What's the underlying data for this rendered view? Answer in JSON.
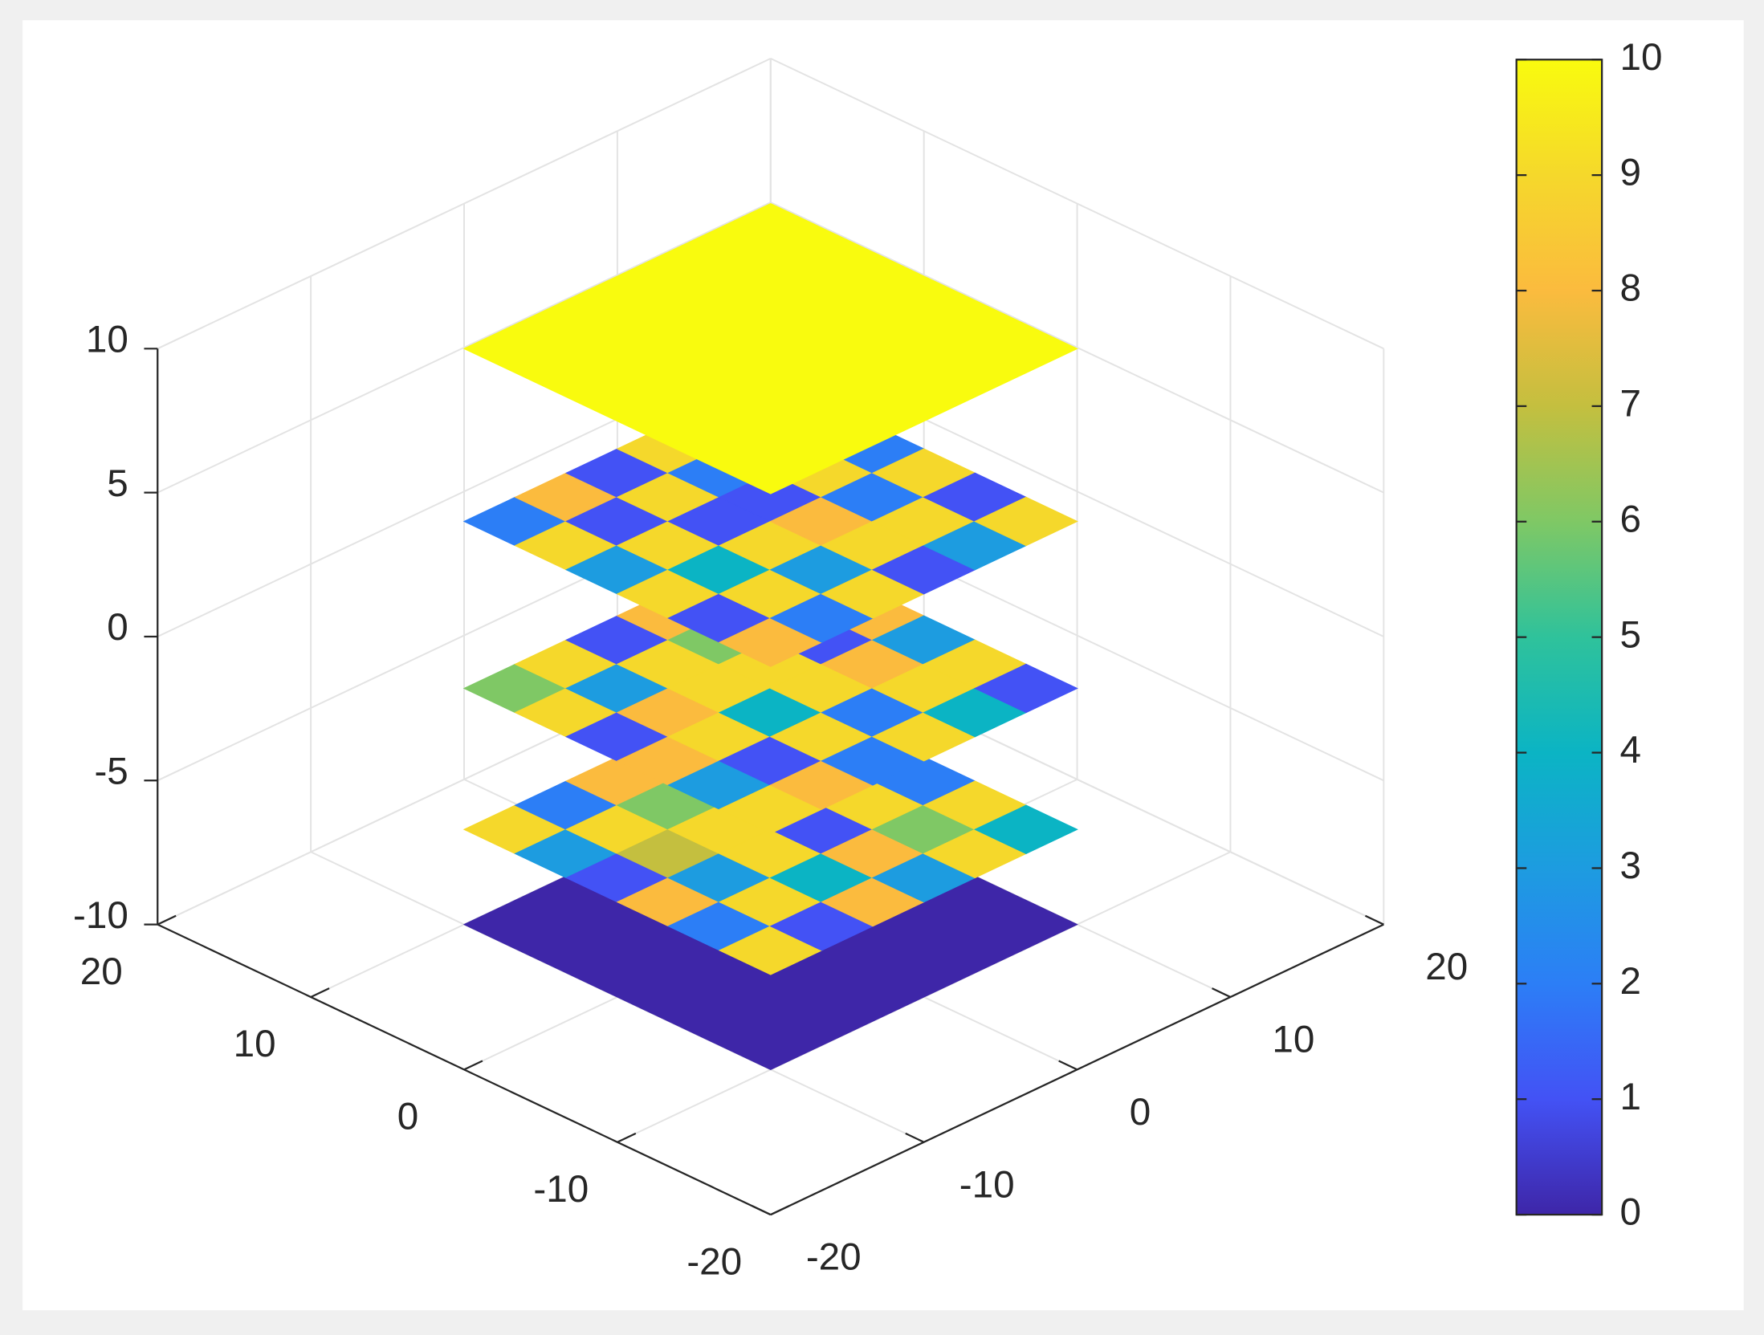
{
  "chart_data": {
    "type": "slice3d",
    "xlim": [
      -20,
      20
    ],
    "xticks": [
      -20,
      -10,
      0,
      10,
      20
    ],
    "ylim": [
      -20,
      20
    ],
    "yticks": [
      -20,
      -10,
      0,
      10,
      20
    ],
    "zlim": [
      -10,
      10
    ],
    "zticks": [
      -10,
      -5,
      0,
      5,
      10
    ],
    "grid": true,
    "colorbar": {
      "clim": [
        0,
        10
      ],
      "ticks": [
        0,
        1,
        2,
        3,
        4,
        5,
        6,
        7,
        8,
        9,
        10
      ]
    },
    "colormap": [
      "#3e26a8",
      "#4352f5",
      "#2c7ef6",
      "#1d9ce0",
      "#0bb4c4",
      "#2fc29b",
      "#7fc865",
      "#c4bf3f",
      "#fbbb3e",
      "#f5d82b",
      "#f9fb0e"
    ],
    "slices": [
      {
        "z": -10,
        "extent": [
          -10,
          10
        ],
        "values": [
          [
            0
          ]
        ]
      },
      {
        "z": -6.7,
        "extent": [
          -10,
          10
        ],
        "values": [
          [
            9,
            2,
            8,
            4,
            1,
            9
          ],
          [
            3,
            9,
            6,
            2,
            8,
            3
          ],
          [
            1,
            7,
            9,
            8,
            3,
            6
          ],
          [
            8,
            3,
            9,
            1,
            9,
            2
          ],
          [
            2,
            9,
            4,
            8,
            6,
            9
          ],
          [
            9,
            1,
            8,
            3,
            9,
            4
          ]
        ]
      },
      {
        "z": -1.8,
        "extent": [
          -10,
          10
        ],
        "values": [
          [
            6,
            9,
            1,
            8,
            3,
            9
          ],
          [
            9,
            3,
            9,
            6,
            9,
            2
          ],
          [
            1,
            8,
            9,
            9,
            1,
            8
          ],
          [
            8,
            9,
            4,
            9,
            8,
            3
          ],
          [
            3,
            1,
            9,
            2,
            9,
            9
          ],
          [
            9,
            8,
            2,
            9,
            4,
            1
          ]
        ]
      },
      {
        "z": 4,
        "extent": [
          -10,
          10
        ],
        "values": [
          [
            2,
            8,
            1,
            9,
            3,
            1
          ],
          [
            9,
            1,
            9,
            2,
            8,
            9
          ],
          [
            3,
            9,
            1,
            1,
            9,
            2
          ],
          [
            9,
            4,
            9,
            8,
            2,
            9
          ],
          [
            1,
            9,
            3,
            9,
            9,
            1
          ],
          [
            8,
            2,
            9,
            1,
            3,
            9
          ]
        ]
      },
      {
        "z": 10,
        "extent": [
          -10,
          10
        ],
        "values": [
          [
            10
          ]
        ]
      }
    ]
  }
}
